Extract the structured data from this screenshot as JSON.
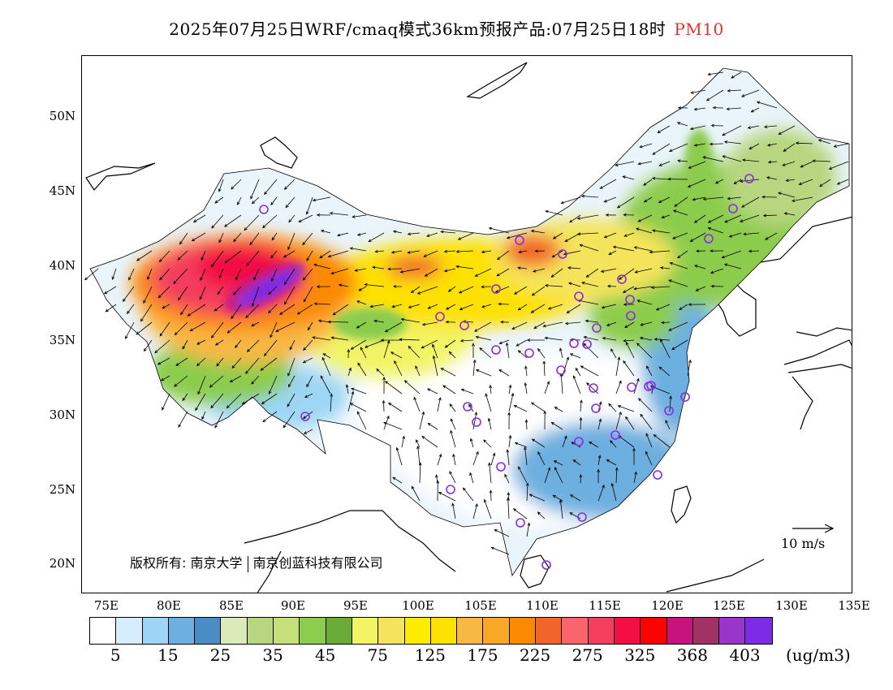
{
  "title": {
    "main": "2025年07月25日WRF/cmaq模式36km预报产品:07月25日18时",
    "variable": "PM10",
    "variable_color": "#e8312b"
  },
  "axes": {
    "lat_labels": [
      "50N",
      "45N",
      "40N",
      "35N",
      "30N",
      "25N",
      "20N"
    ],
    "lon_labels": [
      "75E",
      "80E",
      "85E",
      "90E",
      "95E",
      "100E",
      "105E",
      "110E",
      "115E",
      "120E",
      "125E",
      "130E",
      "135E"
    ]
  },
  "copyright": {
    "prefix": "版权所有:",
    "org1": "南京大学",
    "org2": "南京创蓝科技有限公司"
  },
  "wind_reference": {
    "label": "10 m/s"
  },
  "legend": {
    "colors": [
      "#ffffff",
      "#d6eefb",
      "#9dd6f4",
      "#6db0e0",
      "#4a8cc4",
      "#dbeab8",
      "#b7d67f",
      "#c5e07a",
      "#8ccc4e",
      "#6aaa36",
      "#f2f466",
      "#f4e45c",
      "#fbec00",
      "#fde100",
      "#f8b844",
      "#f9a825",
      "#fb8a00",
      "#f2652a",
      "#f9656a",
      "#f43e5e",
      "#f30e44",
      "#ff0000",
      "#c8127e",
      "#a03266",
      "#9935c8",
      "#7e2be6"
    ],
    "labels": [
      "5",
      "15",
      "25",
      "35",
      "45",
      "75",
      "125",
      "175",
      "225",
      "275",
      "325",
      "368",
      "403"
    ],
    "unit": "(ug/m3)"
  },
  "stations": {
    "marker_color": "#8a2be2",
    "count": 45
  }
}
